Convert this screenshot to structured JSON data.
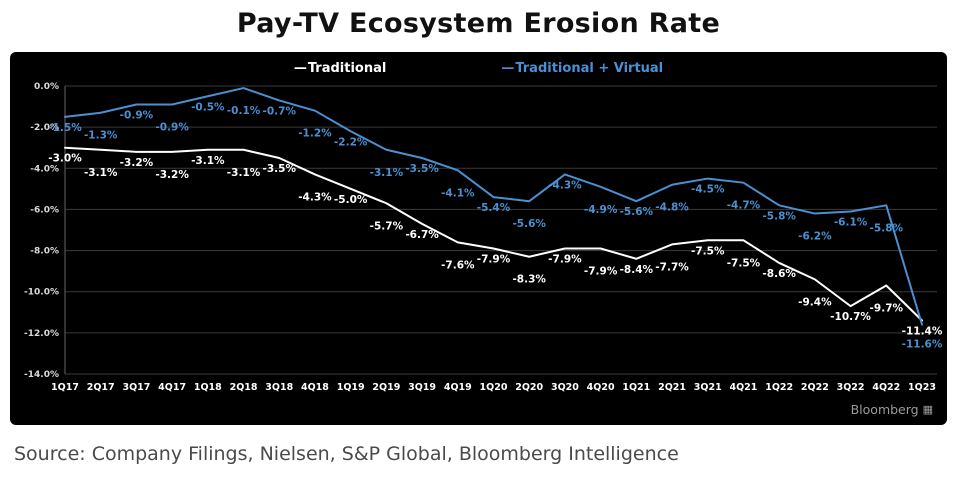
{
  "title": "Pay-TV Ecosystem Erosion Rate",
  "source_caption": "Source: Company Filings, Nielsen, S&P Global, Bloomberg Intelligence",
  "branding": {
    "text": "Bloomberg",
    "icon": "▦"
  },
  "legend": [
    {
      "marker": "—",
      "label": "Traditional",
      "color": "#ffffff"
    },
    {
      "marker": "—",
      "label": "Traditional + Virtual",
      "color": "#4a90d2"
    }
  ],
  "chart_data": {
    "type": "line",
    "title": "Pay-TV Ecosystem Erosion Rate",
    "background": "#000000",
    "grid": true,
    "grid_color": "#3b3b3b",
    "axis_text_color": "#d9d9d9",
    "xtick_color": "#ffffff",
    "legend_position": "top",
    "ylim": [
      -14,
      0
    ],
    "yticks": [
      0,
      -2,
      -4,
      -6,
      -8,
      -10,
      -12,
      -14
    ],
    "ytick_labels": [
      "0.0%",
      "-2.0%",
      "-4.0%",
      "-6.0%",
      "-8.0%",
      "-10.0%",
      "-12.0%",
      "-14.0%"
    ],
    "categories": [
      "1Q17",
      "2Q17",
      "3Q17",
      "4Q17",
      "1Q18",
      "2Q18",
      "3Q18",
      "4Q18",
      "1Q19",
      "2Q19",
      "3Q19",
      "4Q19",
      "1Q20",
      "2Q20",
      "3Q20",
      "4Q20",
      "1Q21",
      "2Q21",
      "3Q21",
      "4Q21",
      "1Q22",
      "2Q22",
      "3Q22",
      "4Q22",
      "1Q23"
    ],
    "series": [
      {
        "name": "Traditional",
        "color": "#ffffff",
        "values": [
          -3.0,
          -3.1,
          -3.2,
          -3.2,
          -3.1,
          -3.1,
          -3.5,
          -4.3,
          -5.0,
          -5.7,
          -6.7,
          -7.6,
          -7.9,
          -8.3,
          -7.9,
          -7.9,
          -8.4,
          -7.7,
          -7.5,
          -7.5,
          -8.6,
          -9.4,
          -10.7,
          -9.7,
          -11.4
        ]
      },
      {
        "name": "Traditional + Virtual",
        "color": "#4a90d2",
        "values": [
          -1.5,
          -1.3,
          -0.9,
          -0.9,
          -0.5,
          -0.1,
          -0.7,
          -1.2,
          -2.2,
          -3.1,
          -3.5,
          -4.1,
          -5.4,
          -5.6,
          -4.3,
          -4.9,
          -5.6,
          -4.8,
          -4.5,
          -4.7,
          -5.8,
          -6.2,
          -6.1,
          -5.8,
          -11.6
        ]
      }
    ],
    "value_label_format": "one_decimal_percent"
  }
}
